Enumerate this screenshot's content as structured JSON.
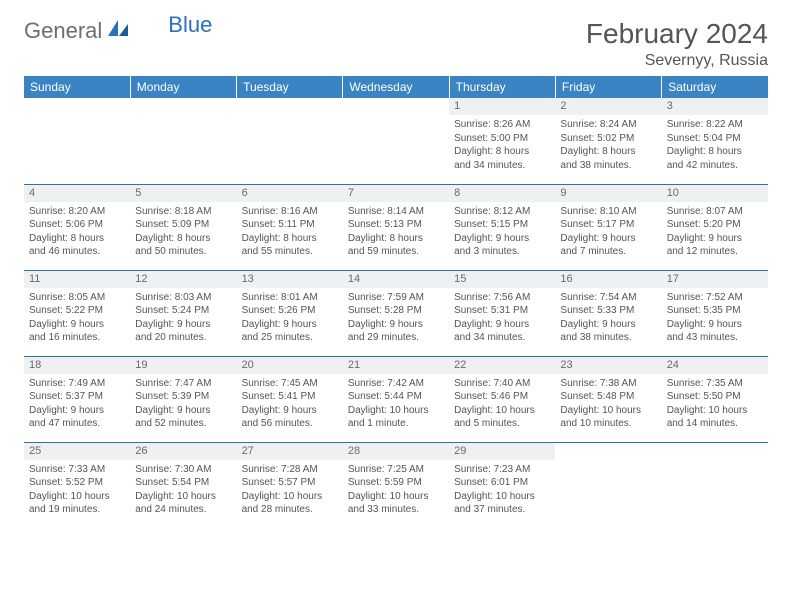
{
  "brand": {
    "part1": "General",
    "part2": "Blue",
    "logo_color": "#2a71b8"
  },
  "title": "February 2024",
  "location": "Severnyy, Russia",
  "colors": {
    "header_bg": "#3b84c4",
    "header_text": "#ffffff",
    "daynum_bg": "#eef0f2",
    "border": "#2a71b8",
    "text": "#555555"
  },
  "day_labels": [
    "Sunday",
    "Monday",
    "Tuesday",
    "Wednesday",
    "Thursday",
    "Friday",
    "Saturday"
  ],
  "weeks": [
    [
      null,
      null,
      null,
      null,
      {
        "n": "1",
        "sr": "Sunrise: 8:26 AM",
        "ss": "Sunset: 5:00 PM",
        "d1": "Daylight: 8 hours",
        "d2": "and 34 minutes."
      },
      {
        "n": "2",
        "sr": "Sunrise: 8:24 AM",
        "ss": "Sunset: 5:02 PM",
        "d1": "Daylight: 8 hours",
        "d2": "and 38 minutes."
      },
      {
        "n": "3",
        "sr": "Sunrise: 8:22 AM",
        "ss": "Sunset: 5:04 PM",
        "d1": "Daylight: 8 hours",
        "d2": "and 42 minutes."
      }
    ],
    [
      {
        "n": "4",
        "sr": "Sunrise: 8:20 AM",
        "ss": "Sunset: 5:06 PM",
        "d1": "Daylight: 8 hours",
        "d2": "and 46 minutes."
      },
      {
        "n": "5",
        "sr": "Sunrise: 8:18 AM",
        "ss": "Sunset: 5:09 PM",
        "d1": "Daylight: 8 hours",
        "d2": "and 50 minutes."
      },
      {
        "n": "6",
        "sr": "Sunrise: 8:16 AM",
        "ss": "Sunset: 5:11 PM",
        "d1": "Daylight: 8 hours",
        "d2": "and 55 minutes."
      },
      {
        "n": "7",
        "sr": "Sunrise: 8:14 AM",
        "ss": "Sunset: 5:13 PM",
        "d1": "Daylight: 8 hours",
        "d2": "and 59 minutes."
      },
      {
        "n": "8",
        "sr": "Sunrise: 8:12 AM",
        "ss": "Sunset: 5:15 PM",
        "d1": "Daylight: 9 hours",
        "d2": "and 3 minutes."
      },
      {
        "n": "9",
        "sr": "Sunrise: 8:10 AM",
        "ss": "Sunset: 5:17 PM",
        "d1": "Daylight: 9 hours",
        "d2": "and 7 minutes."
      },
      {
        "n": "10",
        "sr": "Sunrise: 8:07 AM",
        "ss": "Sunset: 5:20 PM",
        "d1": "Daylight: 9 hours",
        "d2": "and 12 minutes."
      }
    ],
    [
      {
        "n": "11",
        "sr": "Sunrise: 8:05 AM",
        "ss": "Sunset: 5:22 PM",
        "d1": "Daylight: 9 hours",
        "d2": "and 16 minutes."
      },
      {
        "n": "12",
        "sr": "Sunrise: 8:03 AM",
        "ss": "Sunset: 5:24 PM",
        "d1": "Daylight: 9 hours",
        "d2": "and 20 minutes."
      },
      {
        "n": "13",
        "sr": "Sunrise: 8:01 AM",
        "ss": "Sunset: 5:26 PM",
        "d1": "Daylight: 9 hours",
        "d2": "and 25 minutes."
      },
      {
        "n": "14",
        "sr": "Sunrise: 7:59 AM",
        "ss": "Sunset: 5:28 PM",
        "d1": "Daylight: 9 hours",
        "d2": "and 29 minutes."
      },
      {
        "n": "15",
        "sr": "Sunrise: 7:56 AM",
        "ss": "Sunset: 5:31 PM",
        "d1": "Daylight: 9 hours",
        "d2": "and 34 minutes."
      },
      {
        "n": "16",
        "sr": "Sunrise: 7:54 AM",
        "ss": "Sunset: 5:33 PM",
        "d1": "Daylight: 9 hours",
        "d2": "and 38 minutes."
      },
      {
        "n": "17",
        "sr": "Sunrise: 7:52 AM",
        "ss": "Sunset: 5:35 PM",
        "d1": "Daylight: 9 hours",
        "d2": "and 43 minutes."
      }
    ],
    [
      {
        "n": "18",
        "sr": "Sunrise: 7:49 AM",
        "ss": "Sunset: 5:37 PM",
        "d1": "Daylight: 9 hours",
        "d2": "and 47 minutes."
      },
      {
        "n": "19",
        "sr": "Sunrise: 7:47 AM",
        "ss": "Sunset: 5:39 PM",
        "d1": "Daylight: 9 hours",
        "d2": "and 52 minutes."
      },
      {
        "n": "20",
        "sr": "Sunrise: 7:45 AM",
        "ss": "Sunset: 5:41 PM",
        "d1": "Daylight: 9 hours",
        "d2": "and 56 minutes."
      },
      {
        "n": "21",
        "sr": "Sunrise: 7:42 AM",
        "ss": "Sunset: 5:44 PM",
        "d1": "Daylight: 10 hours",
        "d2": "and 1 minute."
      },
      {
        "n": "22",
        "sr": "Sunrise: 7:40 AM",
        "ss": "Sunset: 5:46 PM",
        "d1": "Daylight: 10 hours",
        "d2": "and 5 minutes."
      },
      {
        "n": "23",
        "sr": "Sunrise: 7:38 AM",
        "ss": "Sunset: 5:48 PM",
        "d1": "Daylight: 10 hours",
        "d2": "and 10 minutes."
      },
      {
        "n": "24",
        "sr": "Sunrise: 7:35 AM",
        "ss": "Sunset: 5:50 PM",
        "d1": "Daylight: 10 hours",
        "d2": "and 14 minutes."
      }
    ],
    [
      {
        "n": "25",
        "sr": "Sunrise: 7:33 AM",
        "ss": "Sunset: 5:52 PM",
        "d1": "Daylight: 10 hours",
        "d2": "and 19 minutes."
      },
      {
        "n": "26",
        "sr": "Sunrise: 7:30 AM",
        "ss": "Sunset: 5:54 PM",
        "d1": "Daylight: 10 hours",
        "d2": "and 24 minutes."
      },
      {
        "n": "27",
        "sr": "Sunrise: 7:28 AM",
        "ss": "Sunset: 5:57 PM",
        "d1": "Daylight: 10 hours",
        "d2": "and 28 minutes."
      },
      {
        "n": "28",
        "sr": "Sunrise: 7:25 AM",
        "ss": "Sunset: 5:59 PM",
        "d1": "Daylight: 10 hours",
        "d2": "and 33 minutes."
      },
      {
        "n": "29",
        "sr": "Sunrise: 7:23 AM",
        "ss": "Sunset: 6:01 PM",
        "d1": "Daylight: 10 hours",
        "d2": "and 37 minutes."
      },
      null,
      null
    ]
  ]
}
